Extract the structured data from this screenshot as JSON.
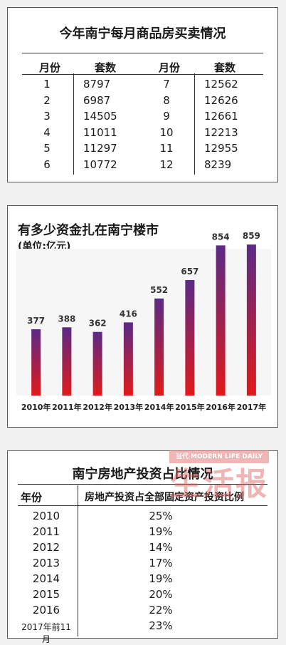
{
  "sales_table": {
    "title": "今年南宁每月商品房买卖情况",
    "col_month": "月份",
    "col_count": "套数",
    "rows": [
      {
        "month": "1",
        "count": "8797"
      },
      {
        "month": "2",
        "count": "6987"
      },
      {
        "month": "3",
        "count": "14505"
      },
      {
        "month": "4",
        "count": "11011"
      },
      {
        "month": "5",
        "count": "11297"
      },
      {
        "month": "6",
        "count": "10772"
      },
      {
        "month": "7",
        "count": "12562"
      },
      {
        "month": "8",
        "count": "12626"
      },
      {
        "month": "9",
        "count": "12661"
      },
      {
        "month": "10",
        "count": "12213"
      },
      {
        "month": "11",
        "count": "12955"
      },
      {
        "month": "12",
        "count": "8239"
      }
    ]
  },
  "chart_data": {
    "type": "bar",
    "title": "有多少资金扎在南宁楼市",
    "unit_label": "(单位:亿元)",
    "categories": [
      "2010年",
      "2011年",
      "2012年",
      "2013年",
      "2014年",
      "2015年",
      "2016年",
      "2017年"
    ],
    "values": [
      377,
      388,
      362,
      416,
      552,
      657,
      854,
      859
    ],
    "ylim": [
      0,
      900
    ],
    "grid": false,
    "legend": "none",
    "bar_color_top": "#5a2a86",
    "bar_color_bottom": "#e01a1a"
  },
  "ratio_table": {
    "title": "南宁房地产投资占比情况",
    "col_year": "年份",
    "col_ratio": "房地产投资占全部固定资产投资比例",
    "rows": [
      {
        "year": "2010",
        "ratio": "25%"
      },
      {
        "year": "2011",
        "ratio": "19%"
      },
      {
        "year": "2012",
        "ratio": "14%"
      },
      {
        "year": "2013",
        "ratio": "17%"
      },
      {
        "year": "2014",
        "ratio": "19%"
      },
      {
        "year": "2015",
        "ratio": "20%"
      },
      {
        "year": "2016",
        "ratio": "22%"
      },
      {
        "year": "2017年前11月",
        "ratio": "23%"
      }
    ]
  },
  "watermark": {
    "top_text": "当代 MODERN LIFE DAILY",
    "main_text": "生活报"
  }
}
